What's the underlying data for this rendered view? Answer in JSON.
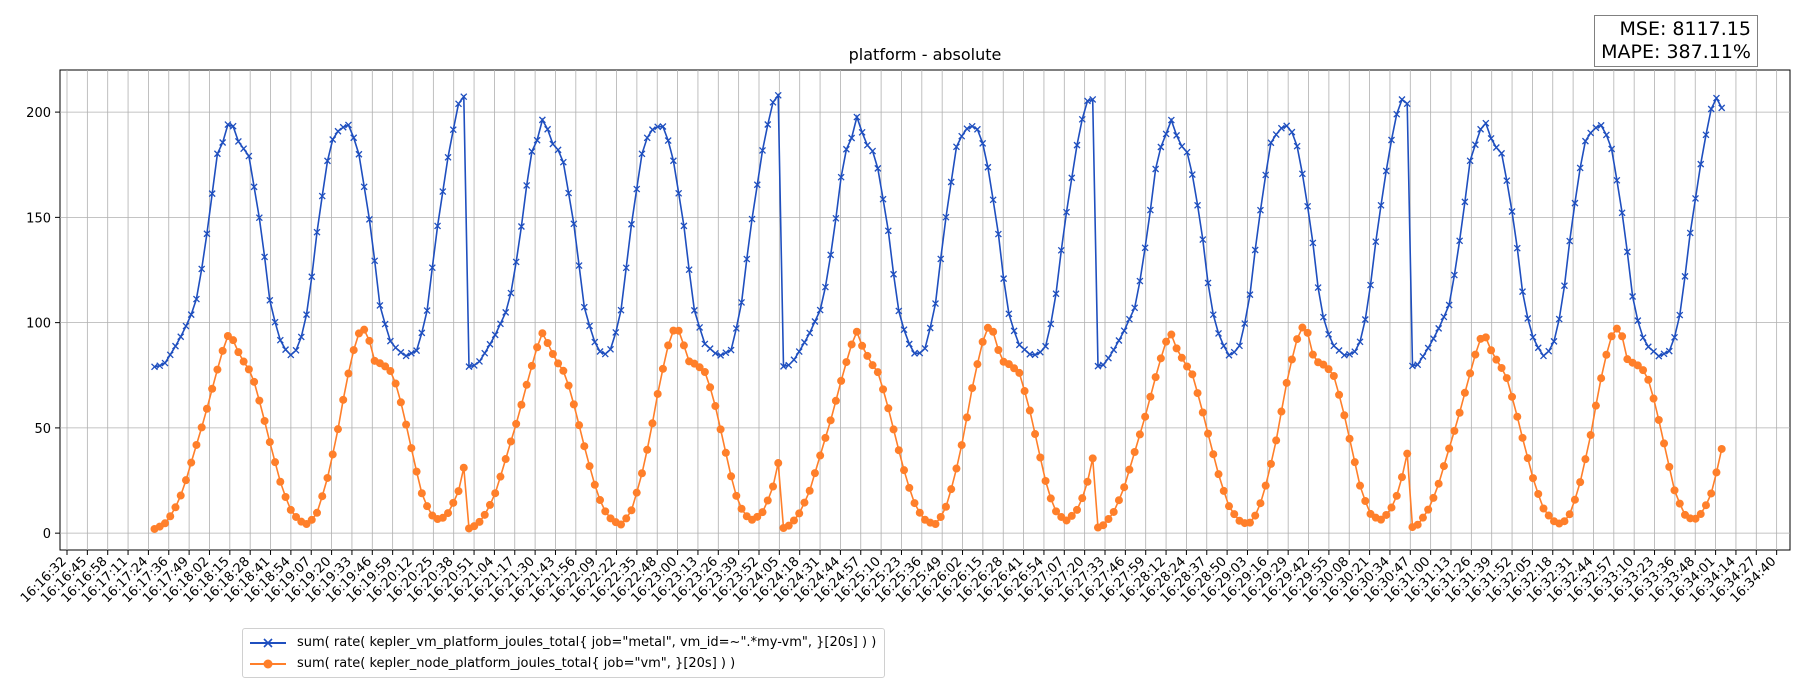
{
  "chart_data": {
    "type": "line",
    "title": "platform - absolute",
    "xlabel": "",
    "ylabel": "",
    "ylim": [
      -8,
      220
    ],
    "yticks": [
      0,
      50,
      100,
      150,
      200
    ],
    "grid": true,
    "legend_position": "bottom-left",
    "x_tick_labels": [
      "16:16:32",
      "16:16:45",
      "16:16:58",
      "16:17:11",
      "16:17:24",
      "16:17:36",
      "16:17:49",
      "16:18:02",
      "16:18:15",
      "16:18:28",
      "16:18:41",
      "16:18:54",
      "16:19:07",
      "16:19:20",
      "16:19:33",
      "16:19:46",
      "16:19:59",
      "16:20:12",
      "16:20:25",
      "16:20:38",
      "16:20:51",
      "16:21:04",
      "16:21:17",
      "16:21:30",
      "16:21:43",
      "16:21:56",
      "16:22:09",
      "16:22:22",
      "16:22:35",
      "16:22:48",
      "16:23:00",
      "16:23:13",
      "16:23:26",
      "16:23:39",
      "16:23:52",
      "16:24:05",
      "16:24:18",
      "16:24:31",
      "16:24:44",
      "16:24:57",
      "16:25:10",
      "16:25:23",
      "16:25:36",
      "16:25:49",
      "16:26:02",
      "16:26:15",
      "16:26:28",
      "16:26:41",
      "16:26:54",
      "16:27:07",
      "16:27:20",
      "16:27:33",
      "16:27:46",
      "16:27:59",
      "16:28:12",
      "16:28:24",
      "16:28:37",
      "16:28:50",
      "16:29:03",
      "16:29:16",
      "16:29:29",
      "16:29:42",
      "16:29:55",
      "16:30:08",
      "16:30:21",
      "16:30:34",
      "16:30:47",
      "16:31:00",
      "16:31:13",
      "16:31:26",
      "16:31:39",
      "16:31:52",
      "16:32:05",
      "16:32:18",
      "16:32:31",
      "16:32:44",
      "16:32:57",
      "16:33:10",
      "16:33:23",
      "16:33:36",
      "16:33:48",
      "16:34:01",
      "16:34:14",
      "16:34:27",
      "16:34:40"
    ],
    "x_start_index": 4.3,
    "x_end_index": 81.3,
    "series": [
      {
        "name": "sum( rate( kepler_vm_platform_joules_total{ job=\"metal\", vm_id=~\".*my-vm\", }[20s] ) )",
        "color": "#1f4fbf",
        "marker": "x",
        "keyframes": [
          [
            0,
            79
          ],
          [
            0.03,
            80
          ],
          [
            0.06,
            87
          ],
          [
            0.09,
            95
          ],
          [
            0.13,
            108
          ],
          [
            0.15,
            125
          ],
          [
            0.17,
            145
          ],
          [
            0.2,
            180
          ],
          [
            0.225,
            188
          ],
          [
            0.24,
            198
          ],
          [
            0.27,
            185
          ],
          [
            0.3,
            180
          ],
          [
            0.34,
            145
          ],
          [
            0.37,
            108
          ],
          [
            0.4,
            92
          ],
          [
            0.43,
            84
          ],
          [
            0.46,
            88
          ],
          [
            0.49,
            107
          ],
          [
            0.52,
            145
          ],
          [
            0.56,
            185
          ],
          [
            0.59,
            192
          ],
          [
            0.62,
            194
          ],
          [
            0.65,
            182
          ],
          [
            0.69,
            145
          ],
          [
            0.72,
            107
          ],
          [
            0.755,
            90
          ],
          [
            0.8,
            84
          ],
          [
            0.84,
            87
          ],
          [
            0.87,
            106
          ],
          [
            0.9,
            143
          ],
          [
            0.94,
            182
          ],
          [
            0.97,
            204
          ],
          [
            0.99,
            208
          ],
          [
            1.0,
            202
          ],
          [
            1.0,
            195
          ]
        ]
      },
      {
        "name": "sum( rate( kepler_node_platform_joules_total{ job=\"vm\", }[20s] ) )",
        "color": "#ff7f2a",
        "marker": "o",
        "keyframes": [
          [
            0,
            2
          ],
          [
            0.03,
            4
          ],
          [
            0.06,
            10
          ],
          [
            0.09,
            20
          ],
          [
            0.13,
            40
          ],
          [
            0.16,
            55
          ],
          [
            0.19,
            72
          ],
          [
            0.22,
            88
          ],
          [
            0.24,
            96
          ],
          [
            0.26,
            88
          ],
          [
            0.29,
            80
          ],
          [
            0.31,
            76
          ],
          [
            0.34,
            60
          ],
          [
            0.37,
            42
          ],
          [
            0.4,
            25
          ],
          [
            0.43,
            12
          ],
          [
            0.46,
            6
          ],
          [
            0.49,
            4
          ],
          [
            0.52,
            10
          ],
          [
            0.55,
            25
          ],
          [
            0.58,
            45
          ],
          [
            0.61,
            70
          ],
          [
            0.64,
            90
          ],
          [
            0.66,
            98
          ],
          [
            0.68,
            95
          ],
          [
            0.7,
            82
          ],
          [
            0.73,
            80
          ],
          [
            0.76,
            76
          ],
          [
            0.79,
            60
          ],
          [
            0.82,
            40
          ],
          [
            0.85,
            20
          ],
          [
            0.88,
            9
          ],
          [
            0.91,
            6
          ],
          [
            0.94,
            10
          ],
          [
            0.97,
            20
          ],
          [
            1.0,
            40
          ]
        ]
      }
    ]
  },
  "metrics": {
    "mse": "MSE: 8117.15",
    "mape": "MAPE: 387.11%"
  }
}
